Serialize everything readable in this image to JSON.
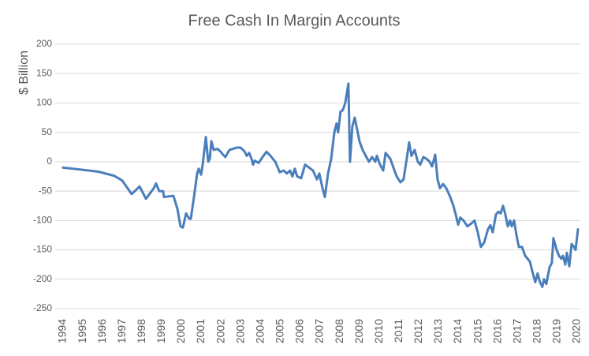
{
  "chart_data": {
    "type": "line",
    "title": "Free Cash In Margin Accounts",
    "y_label": "$ Billion",
    "x": [
      1994.0,
      1994.8,
      1995.79,
      1996.59,
      1996.99,
      1997.47,
      1997.87,
      1998.19,
      1998.59,
      1998.7,
      1998.86,
      1999.06,
      1999.1,
      1999.58,
      1999.78,
      1999.94,
      2000.06,
      2000.22,
      2000.38,
      2000.46,
      2000.62,
      2000.78,
      2000.86,
      2000.98,
      2001.06,
      2001.22,
      2001.34,
      2001.42,
      2001.5,
      2001.62,
      2001.81,
      2001.97,
      2002.09,
      2002.21,
      2002.41,
      2002.77,
      2002.97,
      2003.17,
      2003.29,
      2003.41,
      2003.53,
      2003.61,
      2003.69,
      2003.89,
      2004.09,
      2004.29,
      2004.49,
      2004.73,
      2004.96,
      2005.16,
      2005.32,
      2005.48,
      2005.6,
      2005.72,
      2005.84,
      2006.04,
      2006.24,
      2006.44,
      2006.64,
      2006.84,
      2006.96,
      2007.12,
      2007.24,
      2007.4,
      2007.56,
      2007.72,
      2007.83,
      2007.91,
      2008.03,
      2008.15,
      2008.27,
      2008.43,
      2008.51,
      2008.63,
      2008.75,
      2008.87,
      2008.99,
      2009.15,
      2009.31,
      2009.47,
      2009.63,
      2009.79,
      2009.87,
      2010.03,
      2010.19,
      2010.31,
      2010.43,
      2010.55,
      2010.71,
      2010.87,
      2011.06,
      2011.22,
      2011.38,
      2011.5,
      2011.62,
      2011.78,
      2011.94,
      2012.06,
      2012.22,
      2012.38,
      2012.54,
      2012.66,
      2012.82,
      2012.94,
      2013.06,
      2013.22,
      2013.38,
      2013.58,
      2013.74,
      2013.86,
      2013.98,
      2014.09,
      2014.25,
      2014.45,
      2014.65,
      2014.81,
      2014.97,
      2015.13,
      2015.29,
      2015.49,
      2015.61,
      2015.73,
      2015.89,
      2016.01,
      2016.13,
      2016.25,
      2016.37,
      2016.49,
      2016.61,
      2016.69,
      2016.81,
      2016.93,
      2017.05,
      2017.21,
      2017.37,
      2017.61,
      2017.72,
      2017.88,
      2018.0,
      2018.12,
      2018.24,
      2018.32,
      2018.44,
      2018.6,
      2018.72,
      2018.8,
      2018.96,
      2019.08,
      2019.2,
      2019.28,
      2019.4,
      2019.48,
      2019.6,
      2019.72,
      2019.84,
      2019.92,
      2020.04
    ],
    "values": [
      -10,
      -13,
      -17,
      -24,
      -32,
      -55,
      -42,
      -63,
      -45,
      -37,
      -50,
      -50,
      -60,
      -58,
      -80,
      -110,
      -112,
      -88,
      -97,
      -97,
      -60,
      -20,
      -12,
      -22,
      -5,
      42,
      0,
      5,
      35,
      20,
      22,
      17,
      12,
      8,
      20,
      24,
      24,
      18,
      10,
      15,
      5,
      -5,
      2,
      -2,
      8,
      17,
      10,
      0,
      -18,
      -15,
      -20,
      -15,
      -25,
      -12,
      -25,
      -28,
      -5,
      -10,
      -15,
      -30,
      -20,
      -45,
      -60,
      -20,
      5,
      50,
      65,
      50,
      85,
      88,
      100,
      133,
      0,
      60,
      75,
      55,
      35,
      20,
      10,
      0,
      8,
      0,
      10,
      -5,
      -15,
      15,
      10,
      5,
      -10,
      -25,
      -35,
      -30,
      5,
      33,
      10,
      20,
      0,
      -5,
      8,
      5,
      0,
      -8,
      12,
      -30,
      -45,
      -38,
      -45,
      -60,
      -75,
      -90,
      -107,
      -95,
      -100,
      -110,
      -105,
      -100,
      -120,
      -145,
      -138,
      -115,
      -108,
      -120,
      -90,
      -85,
      -88,
      -75,
      -90,
      -110,
      -100,
      -110,
      -100,
      -125,
      -145,
      -145,
      -160,
      -170,
      -185,
      -205,
      -190,
      -205,
      -213,
      -200,
      -208,
      -180,
      -172,
      -130,
      -150,
      -160,
      -165,
      -160,
      -175,
      -155,
      -178,
      -140,
      -145,
      -150,
      -115
    ],
    "color": "#4a7ebb",
    "xlim": [
      1993.9,
      2020.1
    ],
    "xticks": [
      1994,
      1995,
      1996,
      1997,
      1998,
      1999,
      2000,
      2001,
      2002,
      2003,
      2004,
      2005,
      2006,
      2007,
      2008,
      2009,
      2010,
      2011,
      2012,
      2013,
      2014,
      2015,
      2016,
      2017,
      2018,
      2019,
      2020
    ],
    "ylim": [
      -250,
      200
    ],
    "yticks": [
      -250,
      -200,
      -150,
      -100,
      -50,
      0,
      50,
      100,
      150,
      200
    ],
    "grid": true
  }
}
